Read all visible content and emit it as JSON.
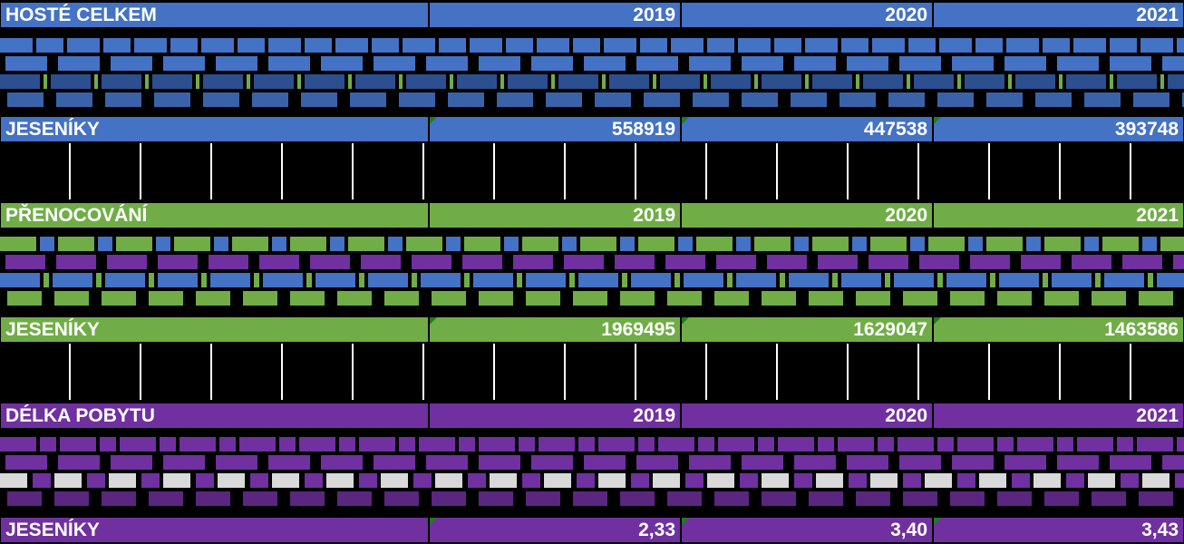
{
  "colors": {
    "blue": "#4472c4",
    "green": "#70ad47",
    "purple": "#7030a0",
    "text": "#ffffff",
    "background": "#000000",
    "corner_marker": "#1e7d1e"
  },
  "sections": [
    {
      "header": {
        "label": "HOSTÉ CELKEM",
        "years": [
          "2019",
          "2020",
          "2021"
        ]
      },
      "data": {
        "label": "JESENÍKY",
        "values": [
          "558919",
          "447538",
          "393748"
        ]
      }
    },
    {
      "header": {
        "label": "PŘENOCOVÁNÍ",
        "years": [
          "2019",
          "2020",
          "2021"
        ]
      },
      "data": {
        "label": "JESENÍKY",
        "values": [
          "1969495",
          "1629047",
          "1463586"
        ]
      }
    },
    {
      "header": {
        "label": "DÉLKA POBYTU",
        "years": [
          "2019",
          "2020",
          "2021"
        ]
      },
      "data": {
        "label": "JESENÍKY",
        "values": [
          "2,33",
          "3,40",
          "3,43"
        ]
      }
    }
  ]
}
